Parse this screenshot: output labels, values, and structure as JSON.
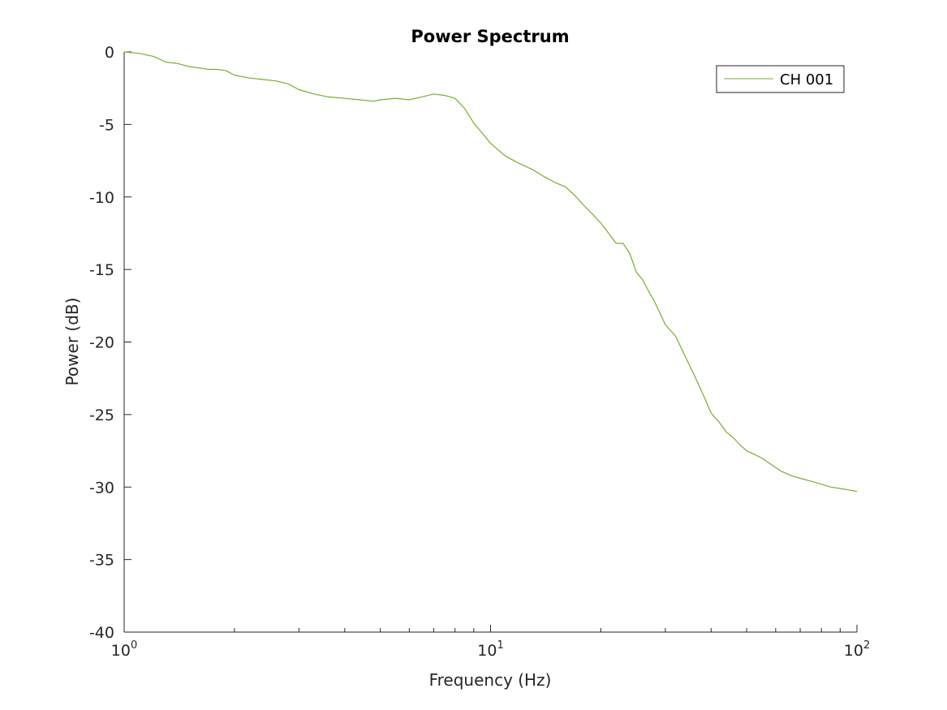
{
  "chart_data": {
    "type": "line",
    "title": "Power Spectrum",
    "xlabel": "Frequency (Hz)",
    "ylabel": "Power (dB)",
    "xscale": "log",
    "xlim": [
      1,
      100
    ],
    "ylim": [
      -40,
      0
    ],
    "grid": false,
    "legend_position": "top-right",
    "x_ticks": [
      {
        "base": "10",
        "exp": "0"
      },
      {
        "base": "10",
        "exp": "1"
      },
      {
        "base": "10",
        "exp": "2"
      }
    ],
    "y_ticks": [
      "0",
      "-5",
      "-10",
      "-15",
      "-20",
      "-25",
      "-30",
      "-35",
      "-40"
    ],
    "series": [
      {
        "name": "CH 001",
        "color": "#77ac30",
        "x": [
          1.0,
          1.1,
          1.2,
          1.3,
          1.4,
          1.5,
          1.6,
          1.7,
          1.8,
          1.9,
          2.0,
          2.2,
          2.4,
          2.6,
          2.8,
          3.0,
          3.3,
          3.6,
          4.0,
          4.4,
          4.8,
          5.0,
          5.5,
          6.0,
          6.5,
          7.0,
          7.5,
          8.0,
          8.5,
          9.0,
          9.5,
          10.0,
          11.0,
          12.0,
          13.0,
          14.0,
          15.0,
          16.0,
          17.0,
          18.0,
          19.0,
          20.0,
          21.0,
          22.0,
          23.0,
          24.0,
          25.0,
          26.0,
          27.0,
          28.0,
          29.0,
          30.0,
          32.0,
          34.0,
          36.0,
          38.0,
          40.0,
          42.0,
          44.0,
          46.0,
          48.0,
          50.0,
          52.0,
          55.0,
          58.0,
          62.0,
          66.0,
          70.0,
          75.0,
          80.0,
          85.0,
          90.0,
          95.0,
          100.0
        ],
        "values": [
          0.0,
          -0.1,
          -0.3,
          -0.7,
          -0.8,
          -1.0,
          -1.1,
          -1.2,
          -1.2,
          -1.3,
          -1.6,
          -1.8,
          -1.9,
          -2.0,
          -2.2,
          -2.6,
          -2.9,
          -3.1,
          -3.2,
          -3.3,
          -3.4,
          -3.3,
          -3.2,
          -3.3,
          -3.1,
          -2.9,
          -3.0,
          -3.2,
          -3.9,
          -4.9,
          -5.6,
          -6.3,
          -7.2,
          -7.7,
          -8.1,
          -8.6,
          -9.0,
          -9.3,
          -9.9,
          -10.6,
          -11.2,
          -11.8,
          -12.5,
          -13.2,
          -13.2,
          -13.9,
          -15.2,
          -15.7,
          -16.5,
          -17.2,
          -18.0,
          -18.8,
          -19.6,
          -21.0,
          -22.3,
          -23.6,
          -24.9,
          -25.5,
          -26.2,
          -26.6,
          -27.1,
          -27.5,
          -27.7,
          -28.0,
          -28.4,
          -28.9,
          -29.2,
          -29.4,
          -29.6,
          -29.8,
          -30.0,
          -30.1,
          -30.2,
          -30.3
        ]
      }
    ]
  }
}
